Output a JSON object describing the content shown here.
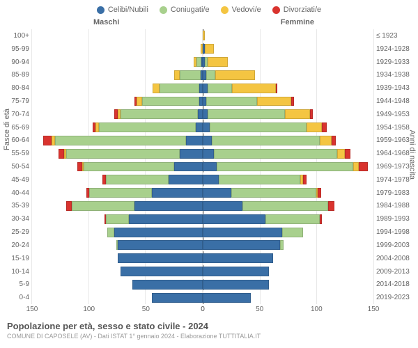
{
  "legend": [
    {
      "label": "Celibi/Nubili",
      "color": "#3a6fa6"
    },
    {
      "label": "Coniugati/e",
      "color": "#a8d08d"
    },
    {
      "label": "Vedovi/e",
      "color": "#f4c542"
    },
    {
      "label": "Divorziati/e",
      "color": "#d9332e"
    }
  ],
  "headers": {
    "male": "Maschi",
    "female": "Femmine"
  },
  "axis_labels": {
    "left": "Fasce di età",
    "right": "Anni di nascita"
  },
  "xaxis": {
    "max": 150,
    "ticks": [
      0,
      50,
      100,
      150
    ]
  },
  "colors": {
    "celibi": "#3a6fa6",
    "coniugati": "#a8d08d",
    "vedovi": "#f4c542",
    "divorziati": "#d9332e",
    "grid": "#e8e8e8",
    "centerline": "#aaaaaa",
    "background": "#ffffff"
  },
  "footer": {
    "title": "Popolazione per età, sesso e stato civile - 2024",
    "subtitle": "COMUNE DI CAPOSELE (AV) - Dati ISTAT 1° gennaio 2024 - Elaborazione TUTTITALIA.IT"
  },
  "rows": [
    {
      "age": "100+",
      "birth": "≤ 1923",
      "male": {
        "celibi": 0,
        "coniugati": 0,
        "vedovi": 0,
        "divorziati": 0
      },
      "female": {
        "celibi": 0,
        "coniugati": 0,
        "vedovi": 2,
        "divorziati": 0
      }
    },
    {
      "age": "95-99",
      "birth": "1924-1928",
      "male": {
        "celibi": 0,
        "coniugati": 0,
        "vedovi": 2,
        "divorziati": 0
      },
      "female": {
        "celibi": 2,
        "coniugati": 0,
        "vedovi": 8,
        "divorziati": 0
      }
    },
    {
      "age": "90-94",
      "birth": "1929-1933",
      "male": {
        "celibi": 1,
        "coniugati": 4,
        "vedovi": 3,
        "divorziati": 0
      },
      "female": {
        "celibi": 2,
        "coniugati": 2,
        "vedovi": 18,
        "divorziati": 0
      }
    },
    {
      "age": "85-89",
      "birth": "1934-1938",
      "male": {
        "celibi": 2,
        "coniugati": 18,
        "vedovi": 5,
        "divorziati": 0
      },
      "female": {
        "celibi": 3,
        "coniugati": 8,
        "vedovi": 35,
        "divorziati": 0
      }
    },
    {
      "age": "80-84",
      "birth": "1939-1943",
      "male": {
        "celibi": 3,
        "coniugati": 35,
        "vedovi": 6,
        "divorziati": 0
      },
      "female": {
        "celibi": 4,
        "coniugati": 22,
        "vedovi": 38,
        "divorziati": 1
      }
    },
    {
      "age": "75-79",
      "birth": "1944-1948",
      "male": {
        "celibi": 3,
        "coniugati": 50,
        "vedovi": 5,
        "divorziati": 2
      },
      "female": {
        "celibi": 3,
        "coniugati": 45,
        "vedovi": 30,
        "divorziati": 2
      }
    },
    {
      "age": "70-74",
      "birth": "1949-1953",
      "male": {
        "celibi": 4,
        "coniugati": 68,
        "vedovi": 3,
        "divorziati": 3
      },
      "female": {
        "celibi": 4,
        "coniugati": 68,
        "vedovi": 22,
        "divorziati": 3
      }
    },
    {
      "age": "65-69",
      "birth": "1954-1958",
      "male": {
        "celibi": 6,
        "coniugati": 85,
        "vedovi": 3,
        "divorziati": 3
      },
      "female": {
        "celibi": 6,
        "coniugati": 85,
        "vedovi": 14,
        "divorziati": 4
      }
    },
    {
      "age": "60-64",
      "birth": "1959-1963",
      "male": {
        "celibi": 15,
        "coniugati": 115,
        "vedovi": 3,
        "divorziati": 7
      },
      "female": {
        "celibi": 8,
        "coniugati": 95,
        "vedovi": 10,
        "divorziati": 4
      }
    },
    {
      "age": "55-59",
      "birth": "1964-1968",
      "male": {
        "celibi": 20,
        "coniugati": 100,
        "vedovi": 2,
        "divorziati": 5
      },
      "female": {
        "celibi": 10,
        "coniugati": 108,
        "vedovi": 7,
        "divorziati": 5
      }
    },
    {
      "age": "50-54",
      "birth": "1969-1973",
      "male": {
        "celibi": 25,
        "coniugati": 80,
        "vedovi": 1,
        "divorziati": 4
      },
      "female": {
        "celibi": 12,
        "coniugati": 120,
        "vedovi": 5,
        "divorziati": 8
      }
    },
    {
      "age": "45-49",
      "birth": "1974-1978",
      "male": {
        "celibi": 30,
        "coniugati": 55,
        "vedovi": 0,
        "divorziati": 3
      },
      "female": {
        "celibi": 14,
        "coniugati": 72,
        "vedovi": 2,
        "divorziati": 3
      }
    },
    {
      "age": "40-44",
      "birth": "1979-1983",
      "male": {
        "celibi": 45,
        "coniugati": 55,
        "vedovi": 0,
        "divorziati": 2
      },
      "female": {
        "celibi": 25,
        "coniugati": 75,
        "vedovi": 1,
        "divorziati": 3
      }
    },
    {
      "age": "35-39",
      "birth": "1984-1988",
      "male": {
        "celibi": 60,
        "coniugati": 55,
        "vedovi": 0,
        "divorziati": 5
      },
      "female": {
        "celibi": 35,
        "coniugati": 75,
        "vedovi": 0,
        "divorziati": 6
      }
    },
    {
      "age": "30-34",
      "birth": "1989-1993",
      "male": {
        "celibi": 65,
        "coniugati": 20,
        "vedovi": 0,
        "divorziati": 1
      },
      "female": {
        "celibi": 55,
        "coniugati": 48,
        "vedovi": 0,
        "divorziati": 2
      }
    },
    {
      "age": "25-29",
      "birth": "1994-1998",
      "male": {
        "celibi": 78,
        "coniugati": 6,
        "vedovi": 0,
        "divorziati": 0
      },
      "female": {
        "celibi": 70,
        "coniugati": 18,
        "vedovi": 0,
        "divorziati": 0
      }
    },
    {
      "age": "20-24",
      "birth": "1999-2003",
      "male": {
        "celibi": 75,
        "coniugati": 1,
        "vedovi": 0,
        "divorziati": 0
      },
      "female": {
        "celibi": 68,
        "coniugati": 3,
        "vedovi": 0,
        "divorziati": 0
      }
    },
    {
      "age": "15-19",
      "birth": "2004-2008",
      "male": {
        "celibi": 75,
        "coniugati": 0,
        "vedovi": 0,
        "divorziati": 0
      },
      "female": {
        "celibi": 62,
        "coniugati": 0,
        "vedovi": 0,
        "divorziati": 0
      }
    },
    {
      "age": "10-14",
      "birth": "2009-2013",
      "male": {
        "celibi": 72,
        "coniugati": 0,
        "vedovi": 0,
        "divorziati": 0
      },
      "female": {
        "celibi": 58,
        "coniugati": 0,
        "vedovi": 0,
        "divorziati": 0
      }
    },
    {
      "age": "5-9",
      "birth": "2014-2018",
      "male": {
        "celibi": 62,
        "coniugati": 0,
        "vedovi": 0,
        "divorziati": 0
      },
      "female": {
        "celibi": 58,
        "coniugati": 0,
        "vedovi": 0,
        "divorziati": 0
      }
    },
    {
      "age": "0-4",
      "birth": "2019-2023",
      "male": {
        "celibi": 45,
        "coniugati": 0,
        "vedovi": 0,
        "divorziati": 0
      },
      "female": {
        "celibi": 42,
        "coniugati": 0,
        "vedovi": 0,
        "divorziati": 0
      }
    }
  ]
}
